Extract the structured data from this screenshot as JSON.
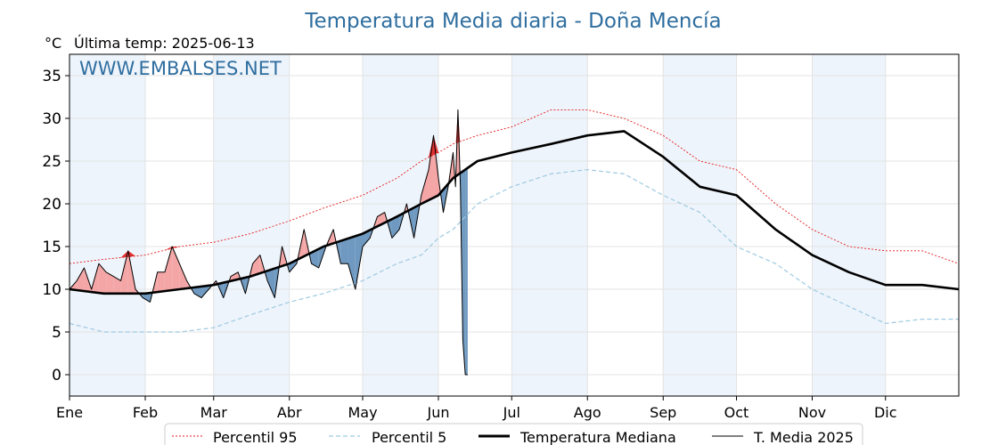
{
  "chart_data": {
    "type": "line",
    "title": "Temperatura Media diaria - Doña Mencía",
    "unit_label": "°C",
    "last_temp_label": "Última temp: 2025-06-13",
    "watermark": "WWW.EMBALSES.NET",
    "ylim": [
      -2.5,
      37.5
    ],
    "y_ticks": [
      0,
      5,
      10,
      15,
      20,
      25,
      30,
      35
    ],
    "months": [
      "Ene",
      "Feb",
      "Mar",
      "Abr",
      "May",
      "Jun",
      "Jul",
      "Ago",
      "Sep",
      "Oct",
      "Nov",
      "Dic"
    ],
    "month_start_day": [
      1,
      32,
      60,
      91,
      121,
      152,
      182,
      213,
      244,
      274,
      305,
      335
    ],
    "x_range_days": [
      1,
      365
    ],
    "grid": true,
    "legend_position": "bottom",
    "colors": {
      "p95": "#e31a1c",
      "p5": "#9ecae1",
      "median": "#000000",
      "t2025": "#000000",
      "above_fill": "#f4a6a6",
      "above_fill_strong": "#e03030",
      "below_fill": "#6f99c0",
      "band": "#eef4fb",
      "title": "#2f6e9f"
    },
    "series": [
      {
        "key": "p95",
        "name": "Percentil 95",
        "x": [
          1,
          15,
          32,
          46,
          60,
          75,
          91,
          105,
          121,
          135,
          145,
          152,
          158,
          168,
          182,
          198,
          213,
          228,
          244,
          259,
          274,
          290,
          305,
          320,
          335,
          350,
          365
        ],
        "y": [
          13,
          13.5,
          14,
          15,
          15.5,
          16.5,
          18,
          19.5,
          21,
          23,
          25,
          26,
          27,
          28,
          29,
          31,
          31,
          30,
          28,
          25,
          24,
          20,
          17,
          15,
          14.5,
          14.5,
          13
        ]
      },
      {
        "key": "p5",
        "name": "Percentil 5",
        "x": [
          1,
          15,
          32,
          46,
          60,
          75,
          91,
          105,
          121,
          135,
          145,
          152,
          158,
          168,
          182,
          198,
          213,
          228,
          244,
          259,
          274,
          290,
          305,
          320,
          335,
          350,
          365
        ],
        "y": [
          6,
          5,
          5,
          5,
          5.5,
          7,
          8.5,
          9.5,
          11,
          13,
          14,
          16,
          17,
          20,
          22,
          23.5,
          24,
          23.5,
          21,
          19,
          15,
          13,
          10,
          8,
          6,
          6.5,
          6.5
        ]
      },
      {
        "key": "median",
        "name": "Temperatura Mediana",
        "x": [
          1,
          15,
          32,
          46,
          60,
          75,
          91,
          105,
          121,
          135,
          145,
          152,
          158,
          168,
          182,
          198,
          213,
          228,
          244,
          259,
          274,
          290,
          305,
          320,
          335,
          350,
          365
        ],
        "y": [
          10,
          9.5,
          9.5,
          10,
          10.5,
          11.5,
          13,
          15,
          16.5,
          18.5,
          20,
          21,
          23,
          25,
          26,
          27,
          28,
          28.5,
          25.5,
          22,
          21,
          17,
          14,
          12,
          10.5,
          10.5,
          10
        ]
      },
      {
        "key": "t2025",
        "name": "T. Media 2025",
        "x": [
          1,
          4,
          7,
          10,
          13,
          16,
          19,
          22,
          25,
          28,
          31,
          34,
          37,
          40,
          43,
          46,
          49,
          52,
          55,
          58,
          61,
          64,
          67,
          70,
          73,
          76,
          79,
          82,
          85,
          88,
          91,
          94,
          97,
          100,
          103,
          106,
          109,
          112,
          115,
          118,
          121,
          124,
          127,
          130,
          133,
          136,
          139,
          142,
          145,
          148,
          150,
          152,
          154,
          156,
          158,
          159,
          160,
          161,
          162,
          163,
          164
        ],
        "y": [
          10,
          11,
          12.5,
          10,
          13,
          12,
          11.5,
          11,
          14.5,
          10,
          9,
          8.5,
          12,
          12,
          15,
          13,
          11,
          9.5,
          9,
          10,
          11,
          9,
          11.5,
          12,
          9.5,
          13,
          14,
          11,
          9,
          15,
          12,
          13,
          17,
          13,
          12.5,
          15,
          17,
          13,
          13,
          10,
          15,
          16,
          18.5,
          19,
          16,
          17,
          20,
          16,
          21,
          24,
          28,
          23,
          19,
          22,
          26,
          22,
          31,
          22,
          4,
          0,
          0
        ]
      }
    ]
  },
  "legend": {
    "items": [
      {
        "key": "p95",
        "label": "Percentil 95"
      },
      {
        "key": "p5",
        "label": "Percentil 5"
      },
      {
        "key": "median",
        "label": "Temperatura Mediana"
      },
      {
        "key": "t2025",
        "label": "T. Media 2025"
      }
    ]
  }
}
